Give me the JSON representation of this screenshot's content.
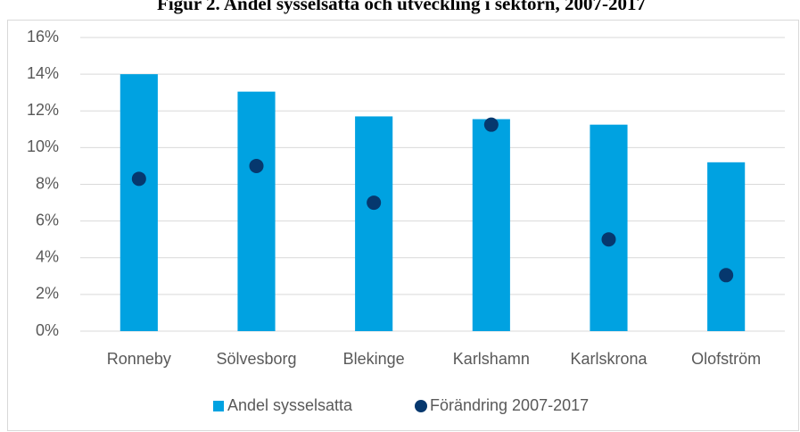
{
  "chart_data": {
    "type": "bar",
    "title": "Figur 2. Andel sysselsatta och utveckling i sektorn, 2007-2017",
    "categories": [
      "Ronneby",
      "Sölvesborg",
      "Blekinge",
      "Karlshamn",
      "Karlskrona",
      "Olofström"
    ],
    "series": [
      {
        "name": "Andel sysselsatta",
        "type": "bar",
        "color": "#00a2e1",
        "values": [
          14.0,
          13.05,
          11.7,
          11.55,
          11.25,
          9.2
        ]
      },
      {
        "name": "Förändring 2007-2017",
        "type": "scatter",
        "color": "#06386e",
        "values": [
          8.3,
          9.0,
          7.0,
          11.25,
          5.0,
          3.05
        ]
      }
    ],
    "ylim": [
      0,
      16
    ],
    "yticks": [
      {
        "value": 0,
        "label": "0%"
      },
      {
        "value": 2,
        "label": "2%"
      },
      {
        "value": 4,
        "label": "4%"
      },
      {
        "value": 6,
        "label": "6%"
      },
      {
        "value": 8,
        "label": "8%"
      },
      {
        "value": 10,
        "label": "10%"
      },
      {
        "value": 12,
        "label": "12%"
      },
      {
        "value": 14,
        "label": "14%"
      },
      {
        "value": 16,
        "label": "16%"
      }
    ],
    "grid": true,
    "legend": "bottom"
  }
}
